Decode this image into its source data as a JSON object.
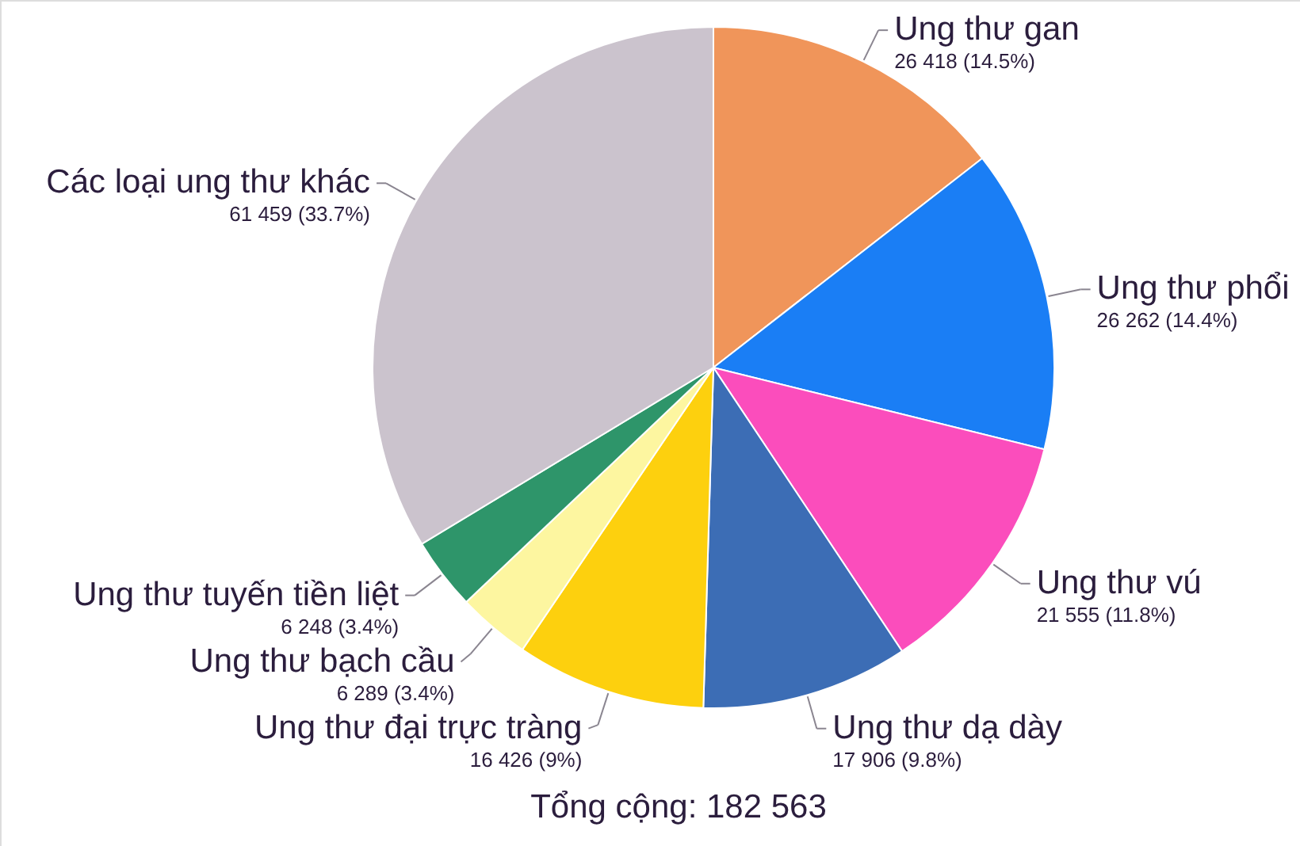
{
  "chart_data": {
    "type": "pie",
    "categories": [
      "Ung thư gan",
      "Ung thư phổi",
      "Ung thư vú",
      "Ung thư dạ dày",
      "Ung thư đại trực tràng",
      "Ung thư bạch cầu",
      "Ung thư tuyến tiền liệt",
      "Các loại ung thư khác"
    ],
    "values": [
      26418,
      26262,
      21555,
      17906,
      16426,
      6289,
      6248,
      61459
    ],
    "colors": [
      "#f0955a",
      "#1a7ef5",
      "#fb4dbc",
      "#3c6db5",
      "#fdd00e",
      "#fdf6a0",
      "#2e956a",
      "#cbc3cd"
    ],
    "value_labels": [
      "26 418 (14.5%)",
      "26 262 (14.4%)",
      "21 555 (11.8%)",
      "17 906 (9.8%)",
      "16 426 (9%)",
      "6 289 (3.4%)",
      "6 248 (3.4%)",
      "61 459 (33.7%)"
    ],
    "annotations": [
      "Tổng cộng: 182 563"
    ]
  }
}
